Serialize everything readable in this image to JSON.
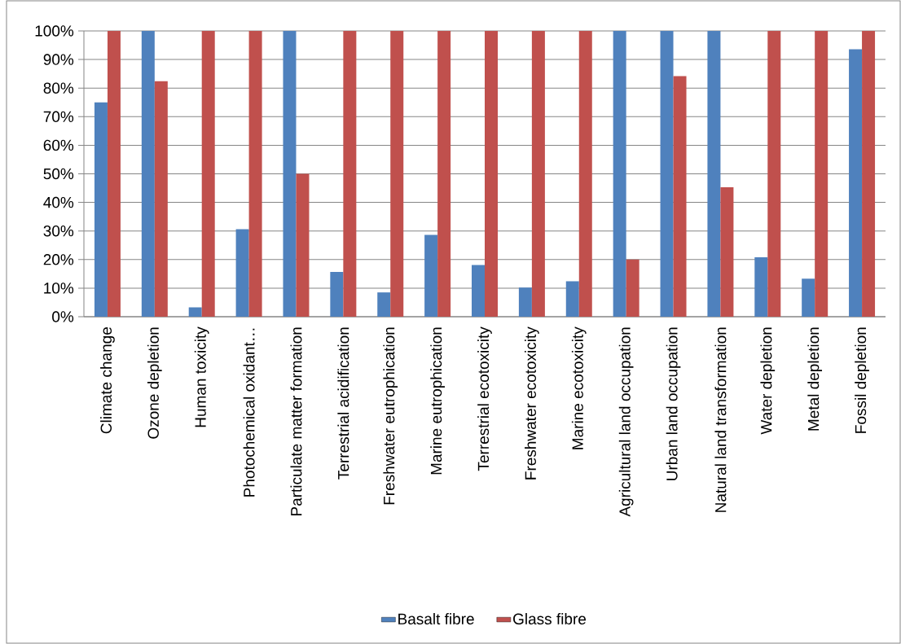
{
  "chart_data": {
    "type": "bar",
    "categories": [
      "Climate change",
      "Ozone depletion",
      "Human toxicity",
      "Photochemical oxidant…",
      "Particulate matter formation",
      "Terrestrial acidification",
      "Freshwater eutrophication",
      "Marine eutrophication",
      "Terrestrial ecotoxicity",
      "Freshwater ecotoxicity",
      "Marine ecotoxicity",
      "Agricultural land occupation",
      "Urban land occupation",
      "Natural land transformation",
      "Water depletion",
      "Metal depletion",
      "Fossil depletion"
    ],
    "series": [
      {
        "name": "Basalt fibre",
        "color": "#4f81bd",
        "values": [
          75,
          100,
          3.3,
          30.6,
          100,
          15.7,
          8.5,
          28.6,
          18.1,
          10.2,
          12.4,
          100,
          100,
          100,
          20.8,
          13.3,
          93.6
        ]
      },
      {
        "name": "Glass fibre",
        "color": "#c0504d",
        "values": [
          100,
          82.4,
          100,
          100,
          50,
          100,
          100,
          100,
          100,
          100,
          100,
          20,
          84.2,
          45.3,
          100,
          100,
          100
        ]
      }
    ],
    "ylim": [
      0,
      100
    ],
    "yticks": [
      {
        "value": 0,
        "label": "0%"
      },
      {
        "value": 10,
        "label": "10%"
      },
      {
        "value": 20,
        "label": "20%"
      },
      {
        "value": 30,
        "label": "30%"
      },
      {
        "value": 40,
        "label": "40%"
      },
      {
        "value": 50,
        "label": "50%"
      },
      {
        "value": 60,
        "label": "60%"
      },
      {
        "value": 70,
        "label": "70%"
      },
      {
        "value": 80,
        "label": "80%"
      },
      {
        "value": 90,
        "label": "90%"
      },
      {
        "value": 100,
        "label": "100%"
      }
    ],
    "grid": "y",
    "legend": "bottom"
  }
}
